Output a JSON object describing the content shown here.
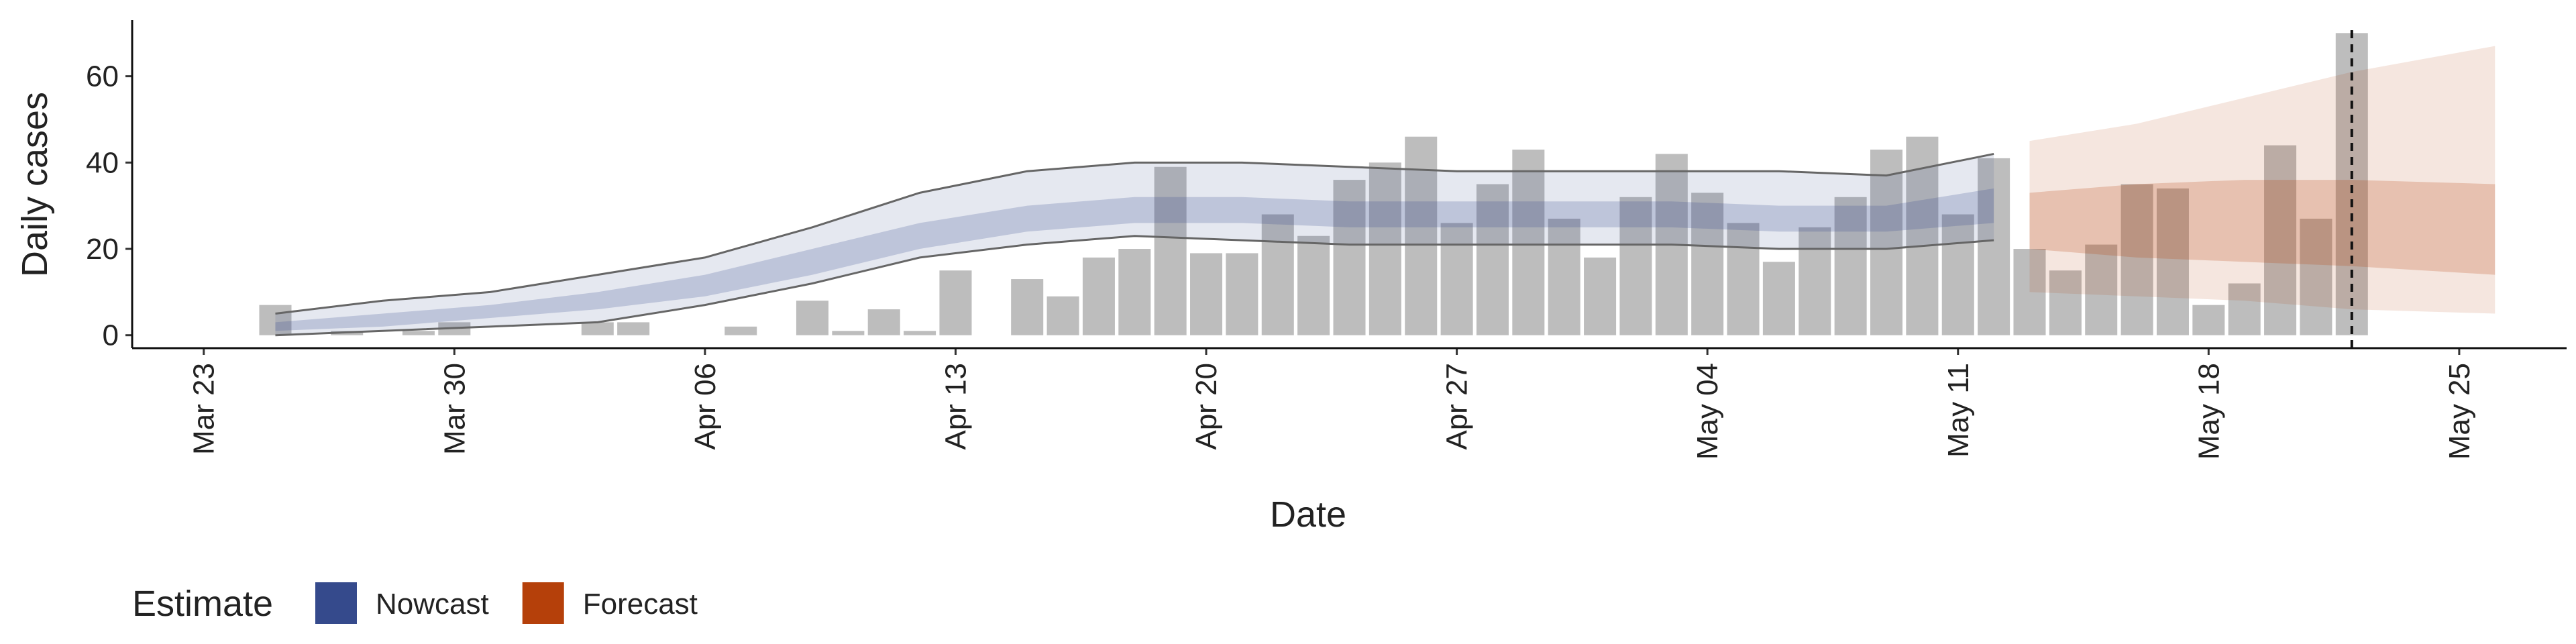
{
  "chart_data": {
    "type": "bar",
    "x_label": "Date",
    "y_label": "Daily cases",
    "x": [
      "Mar 25",
      "Mar 26",
      "Mar 27",
      "Mar 28",
      "Mar 29",
      "Mar 30",
      "Mar 31",
      "Apr 01",
      "Apr 02",
      "Apr 03",
      "Apr 04",
      "Apr 05",
      "Apr 06",
      "Apr 07",
      "Apr 08",
      "Apr 09",
      "Apr 10",
      "Apr 11",
      "Apr 12",
      "Apr 13",
      "Apr 14",
      "Apr 15",
      "Apr 16",
      "Apr 17",
      "Apr 18",
      "Apr 19",
      "Apr 20",
      "Apr 21",
      "Apr 22",
      "Apr 23",
      "Apr 24",
      "Apr 25",
      "Apr 26",
      "Apr 27",
      "Apr 28",
      "Apr 29",
      "Apr 30",
      "May 01",
      "May 02",
      "May 03",
      "May 04",
      "May 05",
      "May 06",
      "May 07",
      "May 08",
      "May 09",
      "May 10",
      "May 11",
      "May 12",
      "May 13",
      "May 14",
      "May 15",
      "May 16",
      "May 17",
      "May 18",
      "May 19",
      "May 20",
      "May 21",
      "May 22"
    ],
    "values": [
      7,
      0,
      1,
      0,
      1,
      3,
      0,
      0,
      0,
      3,
      3,
      0,
      0,
      2,
      0,
      8,
      1,
      6,
      1,
      15,
      0,
      13,
      9,
      18,
      20,
      39,
      19,
      19,
      28,
      23,
      36,
      40,
      46,
      26,
      35,
      43,
      27,
      18,
      32,
      42,
      33,
      26,
      17,
      25,
      32,
      43,
      46,
      28,
      41,
      20,
      15,
      21,
      35,
      34,
      7,
      12,
      44,
      27,
      70
    ],
    "color": "#bdbdbd",
    "series": [
      {
        "name": "Nowcast",
        "color": "#354a8c",
        "lines": true,
        "x": [
          "Mar 25",
          "Mar 28",
          "Mar 31",
          "Apr 03",
          "Apr 06",
          "Apr 09",
          "Apr 12",
          "Apr 15",
          "Apr 18",
          "Apr 21",
          "Apr 24",
          "Apr 27",
          "Apr 30",
          "May 03",
          "May 06",
          "May 09",
          "May 12"
        ],
        "lower_90": [
          0,
          1,
          2,
          3,
          7,
          12,
          18,
          21,
          23,
          22,
          21,
          21,
          21,
          21,
          20,
          20,
          22
        ],
        "upper_90": [
          5,
          8,
          10,
          14,
          18,
          25,
          33,
          38,
          40,
          40,
          39,
          38,
          38,
          38,
          38,
          37,
          42
        ],
        "lower_50": [
          1,
          2,
          4,
          6,
          9,
          14,
          20,
          24,
          26,
          26,
          25,
          25,
          25,
          25,
          24,
          24,
          26
        ],
        "upper_50": [
          3,
          5,
          7,
          10,
          14,
          20,
          26,
          30,
          32,
          32,
          31,
          31,
          31,
          31,
          30,
          30,
          34
        ]
      },
      {
        "name": "Forecast",
        "color": "#b5400a",
        "lines": false,
        "x": [
          "May 13",
          "May 16",
          "May 19",
          "May 22",
          "May 26"
        ],
        "lower_90": [
          10,
          9,
          8,
          6,
          5
        ],
        "upper_90": [
          45,
          49,
          55,
          61,
          67
        ],
        "lower_50": [
          20,
          18,
          17,
          16,
          14
        ],
        "upper_50": [
          33,
          35,
          36,
          36,
          35
        ]
      }
    ],
    "vline": "May 22",
    "legend_title": "Estimate",
    "xlim": [
      "Mar 21",
      "May 28"
    ],
    "xticks": [
      "Mar 23",
      "Mar 30",
      "Apr 06",
      "Apr 13",
      "Apr 20",
      "Apr 27",
      "May 04",
      "May 11",
      "May 18",
      "May 25"
    ],
    "ylim": [
      -3,
      73
    ],
    "yticks": [
      0,
      20,
      40,
      60
    ]
  }
}
